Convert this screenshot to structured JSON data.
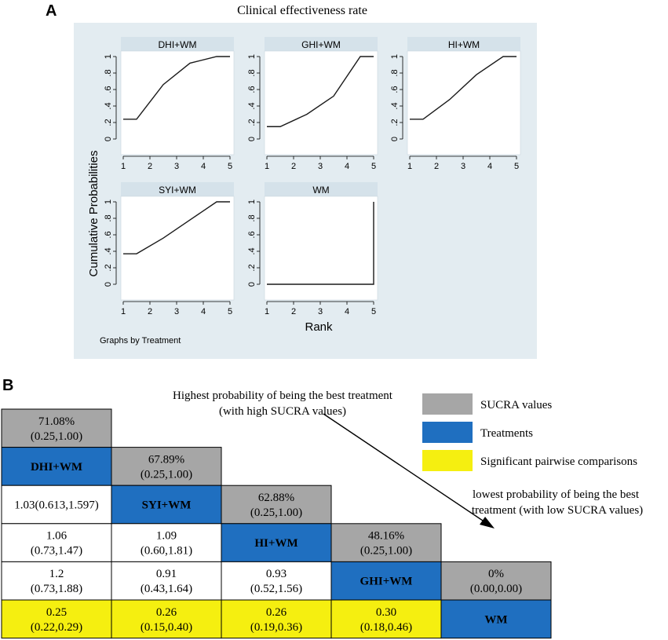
{
  "panel_a": {
    "label": "A",
    "title": "Clinical effectiveness rate",
    "ylabel": "Cumulative Probabilities",
    "xlabel": "Rank",
    "note": "Graphs by Treatment",
    "x_ticks": [
      "1",
      "2",
      "3",
      "4",
      "5"
    ],
    "y_ticks": [
      "0",
      ".2",
      ".4",
      ".6",
      ".8",
      "1"
    ]
  },
  "panel_b": {
    "label": "B",
    "arrow_top": [
      "Highest probability of being the best treatment",
      "(with high SUCRA values)"
    ],
    "arrow_bottom": [
      "lowest probability of being the best",
      "treatment (with low SUCRA values)"
    ],
    "legend": [
      {
        "label": "SUCRA values",
        "color": "#a6a6a6"
      },
      {
        "label": "Treatments",
        "color": "#1f6fc0"
      },
      {
        "label": "Significant pairwise comparisons",
        "color": "#f5ef10"
      }
    ],
    "cells": [
      {
        "r": 0,
        "c": 0,
        "type": "sucra",
        "lines": [
          "71.08%",
          "(0.25,1.00)"
        ]
      },
      {
        "r": 1,
        "c": 0,
        "type": "treat",
        "lines": [
          "DHI+WM"
        ]
      },
      {
        "r": 1,
        "c": 1,
        "type": "sucra",
        "lines": [
          "67.89%",
          "(0.25,1.00)"
        ]
      },
      {
        "r": 2,
        "c": 0,
        "type": "plain",
        "lines": [
          "1.03(0.613,1.597)"
        ]
      },
      {
        "r": 2,
        "c": 1,
        "type": "treat",
        "lines": [
          "SYI+WM"
        ]
      },
      {
        "r": 2,
        "c": 2,
        "type": "sucra",
        "lines": [
          "62.88%",
          "(0.25,1.00)"
        ]
      },
      {
        "r": 3,
        "c": 0,
        "type": "plain",
        "lines": [
          "1.06",
          "(0.73,1.47)"
        ]
      },
      {
        "r": 3,
        "c": 1,
        "type": "plain",
        "lines": [
          "1.09",
          "(0.60,1.81)"
        ]
      },
      {
        "r": 3,
        "c": 2,
        "type": "treat",
        "lines": [
          "HI+WM"
        ]
      },
      {
        "r": 3,
        "c": 3,
        "type": "sucra",
        "lines": [
          "48.16%",
          "(0.25,1.00)"
        ]
      },
      {
        "r": 4,
        "c": 0,
        "type": "plain",
        "lines": [
          "1.2",
          "(0.73,1.88)"
        ]
      },
      {
        "r": 4,
        "c": 1,
        "type": "plain",
        "lines": [
          "0.91",
          "(0.43,1.64)"
        ]
      },
      {
        "r": 4,
        "c": 2,
        "type": "plain",
        "lines": [
          "0.93",
          "(0.52,1.56)"
        ]
      },
      {
        "r": 4,
        "c": 3,
        "type": "treat",
        "lines": [
          "GHI+WM"
        ]
      },
      {
        "r": 4,
        "c": 4,
        "type": "sucra",
        "lines": [
          "0%",
          "(0.00,0.00)"
        ]
      },
      {
        "r": 5,
        "c": 0,
        "type": "sig",
        "lines": [
          "0.25",
          "(0.22,0.29)"
        ]
      },
      {
        "r": 5,
        "c": 1,
        "type": "sig",
        "lines": [
          "0.26",
          "(0.15,0.40)"
        ]
      },
      {
        "r": 5,
        "c": 2,
        "type": "sig",
        "lines": [
          "0.26",
          "(0.19,0.36)"
        ]
      },
      {
        "r": 5,
        "c": 3,
        "type": "sig",
        "lines": [
          "0.30",
          "(0.18,0.46)"
        ]
      },
      {
        "r": 5,
        "c": 4,
        "type": "treat",
        "lines": [
          "WM"
        ]
      }
    ]
  },
  "chart_data": [
    {
      "type": "line",
      "title": "DHI+WM",
      "xlabel": "Rank",
      "ylabel": "Cumulative Probabilities",
      "x": [
        1,
        1.5,
        2.5,
        3.5,
        4.5,
        5
      ],
      "y": [
        0.24,
        0.24,
        0.66,
        0.92,
        1,
        1
      ],
      "xlim": [
        1,
        5
      ],
      "ylim": [
        0,
        1
      ]
    },
    {
      "type": "line",
      "title": "GHI+WM",
      "xlabel": "Rank",
      "ylabel": "Cumulative Probabilities",
      "x": [
        1,
        1.5,
        2.5,
        3.5,
        4.5,
        5
      ],
      "y": [
        0.15,
        0.15,
        0.3,
        0.52,
        1,
        1
      ],
      "xlim": [
        1,
        5
      ],
      "ylim": [
        0,
        1
      ]
    },
    {
      "type": "line",
      "title": "HI+WM",
      "xlabel": "Rank",
      "ylabel": "Cumulative Probabilities",
      "x": [
        1,
        1.5,
        2.5,
        3.5,
        4.5,
        5
      ],
      "y": [
        0.24,
        0.24,
        0.48,
        0.78,
        1,
        1
      ],
      "xlim": [
        1,
        5
      ],
      "ylim": [
        0,
        1
      ]
    },
    {
      "type": "line",
      "title": "SYI+WM",
      "xlabel": "Rank",
      "ylabel": "Cumulative Probabilities",
      "x": [
        1,
        1.5,
        2.5,
        3.5,
        4.5,
        5
      ],
      "y": [
        0.37,
        0.37,
        0.56,
        0.78,
        1,
        1
      ],
      "xlim": [
        1,
        5
      ],
      "ylim": [
        0,
        1
      ]
    },
    {
      "type": "line",
      "title": "WM",
      "xlabel": "Rank",
      "ylabel": "Cumulative Probabilities",
      "x": [
        1,
        5,
        5
      ],
      "y": [
        0,
        0,
        1
      ],
      "xlim": [
        1,
        5
      ],
      "ylim": [
        0,
        1
      ]
    }
  ]
}
